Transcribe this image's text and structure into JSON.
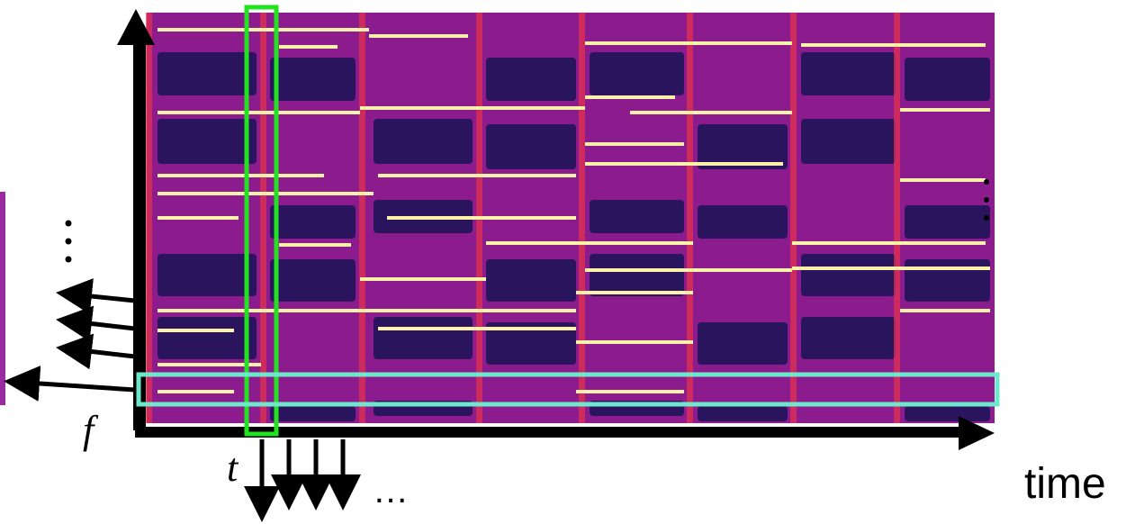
{
  "labels": {
    "axis": "time",
    "frequency": "f",
    "frame": "t",
    "more": "…"
  }
}
